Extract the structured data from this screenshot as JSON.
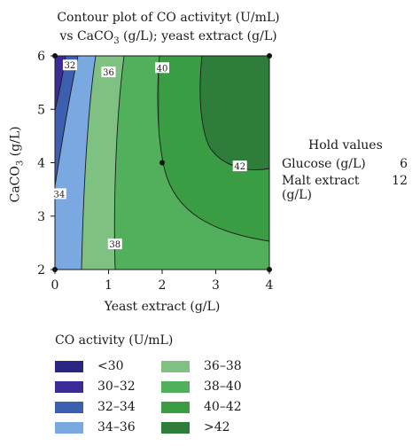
{
  "chart_data": {
    "type": "contour",
    "title_line1": "Contour plot of CO activityt (U/mL)",
    "title_line2_parts": [
      "vs CaCO",
      "3",
      " (g/L); yeast extract (g/L)"
    ],
    "xlabel": "Yeast extract (g/L)",
    "ylabel_parts": [
      "CaCO",
      "3",
      " (g/L)"
    ],
    "xlim": [
      0,
      4
    ],
    "ylim": [
      2,
      6
    ],
    "x_ticks": [
      "0",
      "1",
      "2",
      "3",
      "4"
    ],
    "y_ticks": [
      "2",
      "3",
      "4",
      "5",
      "6"
    ],
    "contour_labels": [
      {
        "text": "32",
        "x": 0.28,
        "y": 5.83
      },
      {
        "text": "34",
        "x": 0.08,
        "y": 3.42
      },
      {
        "text": "36",
        "x": 1.0,
        "y": 5.7
      },
      {
        "text": "38",
        "x": 1.12,
        "y": 2.48
      },
      {
        "text": "40",
        "x": 2.0,
        "y": 5.78
      },
      {
        "text": "42",
        "x": 3.45,
        "y": 3.94
      }
    ],
    "design_points": [
      {
        "x": 0,
        "y": 2
      },
      {
        "x": 0,
        "y": 6
      },
      {
        "x": 4,
        "y": 2
      },
      {
        "x": 4,
        "y": 6
      },
      {
        "x": 2,
        "y": 4
      }
    ]
  },
  "hold": {
    "title": "Hold values",
    "rows": [
      {
        "label": "Glucose (g/L)",
        "value": "6"
      },
      {
        "label": "Malt extract (g/L)",
        "value": "12"
      }
    ]
  },
  "legend": {
    "title": "CO activity (U/mL)",
    "items": [
      {
        "label": "<30",
        "color": "#2b2582"
      },
      {
        "label": "30–32",
        "color": "#3a2c96"
      },
      {
        "label": "32–34",
        "color": "#3d5fb0"
      },
      {
        "label": "34–36",
        "color": "#7aa8e0"
      },
      {
        "label": "36–38",
        "color": "#7fc083"
      },
      {
        "label": "38–40",
        "color": "#52b05c"
      },
      {
        "label": "40–42",
        "color": "#3a9d44"
      },
      {
        "label": ">42",
        "color": "#2f7d3a"
      }
    ]
  }
}
